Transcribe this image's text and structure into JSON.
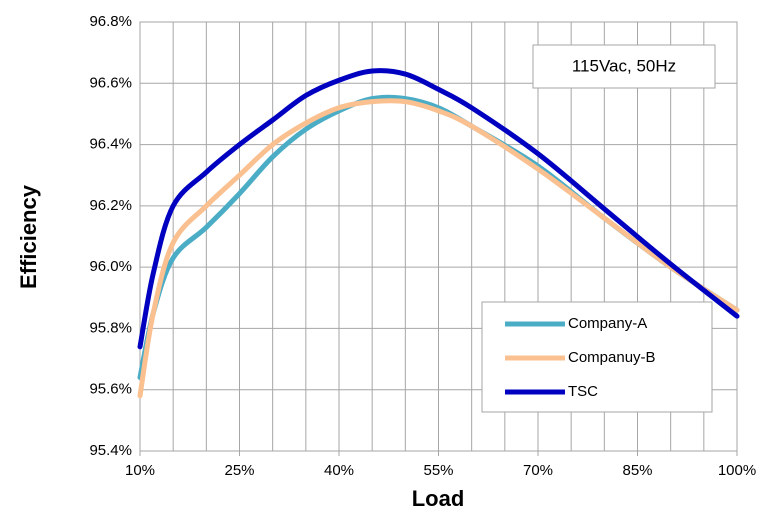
{
  "chart_data": {
    "type": "line",
    "x_label": "Load",
    "y_label": "Efficiency",
    "annotation": "115Vac, 50Hz",
    "x": [
      10,
      12,
      15,
      20,
      25,
      30,
      35,
      40,
      45,
      50,
      55,
      60,
      70,
      80,
      90,
      100
    ],
    "series": [
      {
        "name": "Company-A",
        "color": "#4bacc6",
        "values": [
          95.64,
          95.85,
          96.03,
          96.13,
          96.24,
          96.36,
          96.45,
          96.51,
          96.55,
          96.55,
          96.52,
          96.46,
          96.33,
          96.16,
          96.0,
          95.86
        ]
      },
      {
        "name": "Companuy-B",
        "color": "#fac090",
        "values": [
          95.58,
          95.85,
          96.08,
          96.2,
          96.3,
          96.4,
          96.47,
          96.52,
          96.54,
          96.54,
          96.51,
          96.46,
          96.32,
          96.16,
          96.0,
          95.86
        ]
      },
      {
        "name": "TSC",
        "color": "#0000c0",
        "values": [
          95.74,
          95.98,
          96.2,
          96.31,
          96.4,
          96.48,
          96.56,
          96.61,
          96.64,
          96.63,
          96.58,
          96.52,
          96.37,
          96.19,
          96.01,
          95.84
        ]
      }
    ],
    "xlim": [
      10,
      100
    ],
    "xticks": [
      {
        "value": 10,
        "label": "10%"
      },
      {
        "value": 25,
        "label": "25%"
      },
      {
        "value": 40,
        "label": "40%"
      },
      {
        "value": 55,
        "label": "55%"
      },
      {
        "value": 70,
        "label": "70%"
      },
      {
        "value": 85,
        "label": "85%"
      },
      {
        "value": 100,
        "label": "100%"
      }
    ],
    "x_grid": [
      15,
      20,
      25,
      30,
      35,
      40,
      45,
      50,
      55,
      60,
      65,
      70,
      75,
      80,
      85,
      90,
      95
    ],
    "ylim": [
      95.4,
      96.8
    ],
    "yticks": [
      {
        "value": 95.4,
        "label": "95.4%"
      },
      {
        "value": 95.6,
        "label": "95.6%"
      },
      {
        "value": 95.8,
        "label": "95.8%"
      },
      {
        "value": 96.0,
        "label": "96.0%"
      },
      {
        "value": 96.2,
        "label": "96.2%"
      },
      {
        "value": 96.4,
        "label": "96.4%"
      },
      {
        "value": 96.6,
        "label": "96.6%"
      },
      {
        "value": 96.8,
        "label": "96.8%"
      }
    ],
    "grid": true
  }
}
